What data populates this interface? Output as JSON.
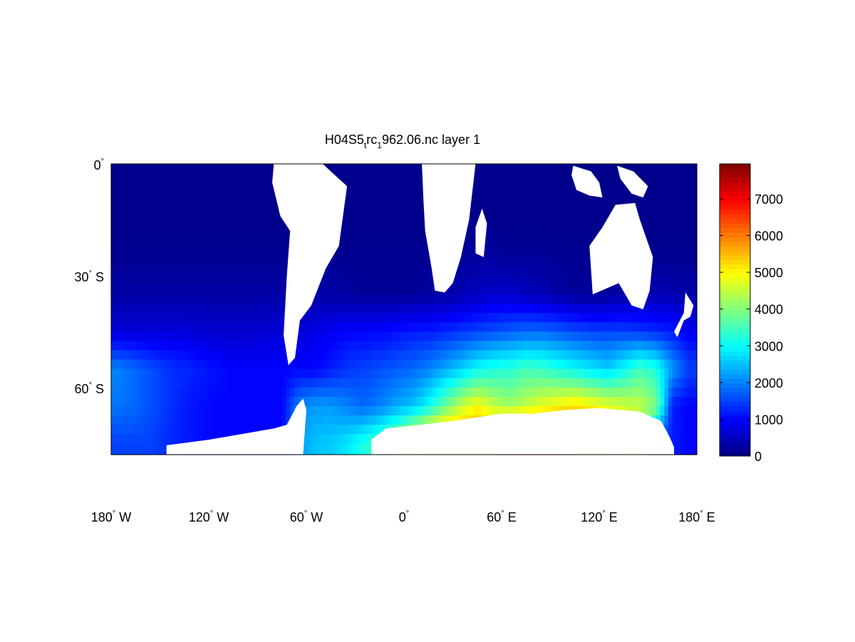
{
  "chart_data": {
    "type": "heatmap",
    "title": "H04S5_trc_1962.06.nc layer 1",
    "title_parts": {
      "a": "H04S5",
      "sub1": "t",
      "b": "rc",
      "sub2": "1",
      "c": "962.06.nc layer 1"
    },
    "xlim": [
      -180,
      180
    ],
    "ylim": [
      -78,
      0
    ],
    "x_ticks": [
      {
        "value": -180,
        "label": "180",
        "suffix": "W"
      },
      {
        "value": -120,
        "label": "120",
        "suffix": "W"
      },
      {
        "value": -60,
        "label": "60",
        "suffix": "W"
      },
      {
        "value": 0,
        "label": "0",
        "suffix": ""
      },
      {
        "value": 60,
        "label": "60",
        "suffix": "E"
      },
      {
        "value": 120,
        "label": "120",
        "suffix": "E"
      },
      {
        "value": 180,
        "label": "180",
        "suffix": "E"
      }
    ],
    "y_ticks": [
      {
        "value": 0,
        "label": "0",
        "suffix": ""
      },
      {
        "value": -30,
        "label": "30",
        "suffix": "S"
      },
      {
        "value": -60,
        "label": "60",
        "suffix": "S"
      }
    ],
    "degree_symbol": "°",
    "colormap": "jet",
    "clim": [
      0,
      7950
    ],
    "colorbar_ticks": [
      "0",
      "1000",
      "2000",
      "3000",
      "4000",
      "5000",
      "6000",
      "7000"
    ],
    "grid_lat_centers": [
      -5,
      -15,
      -25,
      -35,
      -45,
      -55,
      -65,
      -75
    ],
    "grid_lon_centers_start": -175,
    "grid_lon_step": 10,
    "values": [
      [
        100,
        100,
        100,
        100,
        100,
        100,
        100,
        100,
        100,
        100,
        100,
        100,
        100,
        100,
        100,
        100,
        100,
        100,
        100,
        100,
        100,
        100,
        100,
        100,
        100,
        100,
        100,
        100,
        100,
        100,
        100,
        100,
        100,
        100,
        100,
        100
      ],
      [
        100,
        100,
        100,
        100,
        100,
        100,
        100,
        100,
        100,
        100,
        100,
        100,
        100,
        100,
        100,
        100,
        100,
        100,
        100,
        100,
        100,
        100,
        100,
        100,
        100,
        100,
        100,
        100,
        100,
        100,
        100,
        100,
        100,
        100,
        100,
        100
      ],
      [
        150,
        150,
        150,
        150,
        150,
        150,
        150,
        150,
        150,
        150,
        150,
        150,
        150,
        150,
        150,
        150,
        150,
        150,
        150,
        150,
        150,
        200,
        250,
        250,
        200,
        200,
        200,
        150,
        150,
        150,
        150,
        150,
        150,
        150,
        150,
        150
      ],
      [
        300,
        300,
        300,
        300,
        300,
        300,
        300,
        300,
        300,
        300,
        300,
        300,
        300,
        300,
        250,
        200,
        200,
        200,
        200,
        250,
        300,
        400,
        500,
        600,
        600,
        500,
        400,
        300,
        200,
        200,
        200,
        300,
        400,
        400,
        400,
        300
      ],
      [
        700,
        700,
        700,
        700,
        700,
        650,
        600,
        600,
        600,
        650,
        700,
        700,
        800,
        900,
        1000,
        1000,
        1000,
        1100,
        1200,
        1200,
        1300,
        1400,
        1500,
        1600,
        1700,
        1800,
        1800,
        1700,
        1600,
        1500,
        1500,
        1500,
        1400,
        1300,
        1200,
        900
      ],
      [
        2000,
        1800,
        1600,
        1400,
        1300,
        1200,
        1100,
        1000,
        1000,
        1000,
        1000,
        1000,
        1000,
        1200,
        1400,
        1500,
        1600,
        1700,
        1800,
        2000,
        2300,
        2600,
        3000,
        3200,
        3300,
        3500,
        3400,
        3200,
        3000,
        2800,
        2600,
        3000,
        3500,
        3200,
        2200,
        1500
      ],
      [
        1900,
        1800,
        1600,
        1400,
        1200,
        1100,
        1000,
        1000,
        1000,
        1000,
        1000,
        2000,
        2200,
        2200,
        2000,
        1800,
        2000,
        2300,
        2500,
        3000,
        3800,
        4500,
        5000,
        4500,
        4200,
        4500,
        4800,
        5000,
        5200,
        5000,
        4800,
        4600,
        4500,
        4000,
        1200,
        1000
      ],
      [
        1500,
        1500,
        1500,
        1300,
        1200,
        1100,
        1000,
        1000,
        1000,
        1000,
        1000,
        2200,
        2500,
        2600,
        2800,
        3200,
        3600,
        4200,
        5200,
        6000,
        6200,
        6000,
        6000,
        6200,
        7800,
        7200,
        6500,
        6500,
        6200,
        6000,
        5800,
        5000,
        4000,
        1500,
        1200,
        1000
      ]
    ],
    "land": [
      {
        "name": "south-america",
        "lonlat": [
          [
            -80,
            0
          ],
          [
            -50,
            0
          ],
          [
            -35,
            -6
          ],
          [
            -40,
            -22
          ],
          [
            -48,
            -28
          ],
          [
            -57,
            -38
          ],
          [
            -64,
            -42
          ],
          [
            -67,
            -52
          ],
          [
            -71,
            -54
          ],
          [
            -74,
            -46
          ],
          [
            -72,
            -30
          ],
          [
            -70,
            -18
          ],
          [
            -76,
            -14
          ],
          [
            -81,
            -5
          ]
        ]
      },
      {
        "name": "africa",
        "lonlat": [
          [
            11,
            0
          ],
          [
            44,
            0
          ],
          [
            40,
            -15
          ],
          [
            35,
            -25
          ],
          [
            30,
            -32
          ],
          [
            25,
            -34.5
          ],
          [
            19,
            -34
          ],
          [
            17,
            -28
          ],
          [
            13,
            -18
          ],
          [
            12,
            -10
          ]
        ]
      },
      {
        "name": "madagascar",
        "lonlat": [
          [
            48,
            -12
          ],
          [
            51,
            -16
          ],
          [
            49,
            -25
          ],
          [
            44,
            -24
          ],
          [
            44,
            -17
          ]
        ]
      },
      {
        "name": "australia",
        "lonlat": [
          [
            130,
            -11
          ],
          [
            142,
            -10.5
          ],
          [
            145,
            -15
          ],
          [
            153,
            -25
          ],
          [
            151,
            -34
          ],
          [
            147,
            -39
          ],
          [
            140,
            -38
          ],
          [
            132,
            -32
          ],
          [
            116,
            -35
          ],
          [
            114,
            -22
          ],
          [
            122,
            -17
          ]
        ]
      },
      {
        "name": "new-guinea",
        "lonlat": [
          [
            131,
            -0.5
          ],
          [
            141,
            -2
          ],
          [
            150,
            -6
          ],
          [
            147,
            -9
          ],
          [
            140,
            -8
          ],
          [
            133,
            -4
          ]
        ]
      },
      {
        "name": "indonesia",
        "lonlat": [
          [
            104,
            -0.5
          ],
          [
            115,
            -2
          ],
          [
            120,
            -5
          ],
          [
            122,
            -9
          ],
          [
            114,
            -8.5
          ],
          [
            106,
            -7
          ],
          [
            103,
            -3
          ]
        ]
      },
      {
        "name": "new-zealand",
        "lonlat": [
          [
            173,
            -34.5
          ],
          [
            178,
            -38
          ],
          [
            176,
            -41
          ],
          [
            172,
            -42
          ],
          [
            168,
            -46.5
          ],
          [
            166,
            -45
          ],
          [
            172,
            -40
          ]
        ]
      },
      {
        "name": "antarctica-west",
        "lonlat": [
          [
            -180,
            -78
          ],
          [
            -146,
            -78
          ],
          [
            -146,
            -75.5
          ],
          [
            -120,
            -74
          ],
          [
            -100,
            -72.5
          ],
          [
            -80,
            -71
          ],
          [
            -72,
            -70
          ],
          [
            -66,
            -65
          ],
          [
            -62,
            -63
          ],
          [
            -60,
            -66
          ],
          [
            -62,
            -78
          ]
        ]
      },
      {
        "name": "antarctica-east",
        "lonlat": [
          [
            -20,
            -78
          ],
          [
            -20,
            -74
          ],
          [
            -11,
            -71
          ],
          [
            0,
            -70.5
          ],
          [
            30,
            -69
          ],
          [
            60,
            -67
          ],
          [
            72,
            -67
          ],
          [
            80,
            -67
          ],
          [
            100,
            -66
          ],
          [
            120,
            -65.5
          ],
          [
            145,
            -66.5
          ],
          [
            158,
            -69
          ],
          [
            163,
            -73
          ],
          [
            166,
            -76
          ],
          [
            166,
            -78
          ]
        ]
      }
    ]
  }
}
